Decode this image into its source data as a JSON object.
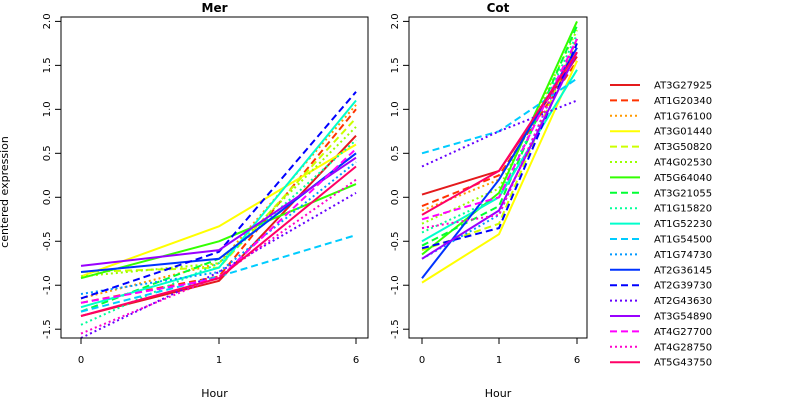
{
  "chart_data": {
    "type": "line",
    "ylabel": "centered expression",
    "xlabel": "Hour",
    "x": [
      "0",
      "1",
      "6"
    ],
    "ylim": [
      -1.6,
      2.05
    ],
    "yticks": [
      "-1.5",
      "-1.0",
      "-0.5",
      "0.0",
      "0.5",
      "1.0",
      "1.5",
      "2.0"
    ],
    "ytick_values": [
      -1.5,
      -1.0,
      -0.5,
      0.0,
      0.5,
      1.0,
      1.5,
      2.0
    ],
    "grid": false,
    "legend_placement": "right",
    "series_styles": [
      {
        "name": "AT3G27925",
        "color": "#e41a1c",
        "dash": "solid"
      },
      {
        "name": "AT1G20340",
        "color": "#ff3300",
        "dash": "dashed"
      },
      {
        "name": "AT1G76100",
        "color": "#ff9900",
        "dash": "dotted"
      },
      {
        "name": "AT3G01440",
        "color": "#ffff00",
        "dash": "solid"
      },
      {
        "name": "AT3G50820",
        "color": "#ccff00",
        "dash": "dashed"
      },
      {
        "name": "AT4G02530",
        "color": "#99ff00",
        "dash": "dotted"
      },
      {
        "name": "AT5G64040",
        "color": "#33ff00",
        "dash": "solid"
      },
      {
        "name": "AT3G21055",
        "color": "#00ff33",
        "dash": "dashed"
      },
      {
        "name": "AT1G15820",
        "color": "#00ff99",
        "dash": "dotted"
      },
      {
        "name": "AT1G52230",
        "color": "#00ffcc",
        "dash": "solid"
      },
      {
        "name": "AT1G54500",
        "color": "#00ccff",
        "dash": "dashed"
      },
      {
        "name": "AT1G74730",
        "color": "#0099ff",
        "dash": "dotted"
      },
      {
        "name": "AT2G36145",
        "color": "#0033ff",
        "dash": "solid"
      },
      {
        "name": "AT2G39730",
        "color": "#0000ff",
        "dash": "dashed"
      },
      {
        "name": "AT2G43630",
        "color": "#6600ff",
        "dash": "dotted"
      },
      {
        "name": "AT3G54890",
        "color": "#9900ff",
        "dash": "solid"
      },
      {
        "name": "AT4G27700",
        "color": "#ff00ff",
        "dash": "dashed"
      },
      {
        "name": "AT4G28750",
        "color": "#ff00cc",
        "dash": "dotted"
      },
      {
        "name": "AT5G43750",
        "color": "#ff0066",
        "dash": "solid"
      }
    ],
    "panels": [
      {
        "title": "Mer",
        "series": [
          {
            "name": "AT3G27925",
            "values": [
              -1.35,
              -0.95,
              0.7
            ]
          },
          {
            "name": "AT1G20340",
            "values": [
              -1.2,
              -0.9,
              1.0
            ]
          },
          {
            "name": "AT1G76100",
            "values": [
              -1.15,
              -0.75,
              1.05
            ]
          },
          {
            "name": "AT3G01440",
            "values": [
              -0.9,
              -0.33,
              0.6
            ]
          },
          {
            "name": "AT3G50820",
            "values": [
              -0.85,
              -0.8,
              0.9
            ]
          },
          {
            "name": "AT4G02530",
            "values": [
              -0.9,
              -0.75,
              0.8
            ]
          },
          {
            "name": "AT5G64040",
            "values": [
              -0.92,
              -0.5,
              0.15
            ]
          },
          {
            "name": "AT3G21055",
            "values": [
              -1.3,
              -0.7,
              0.5
            ]
          },
          {
            "name": "AT1G15820",
            "values": [
              -1.45,
              -0.75,
              0.65
            ]
          },
          {
            "name": "AT1G52230",
            "values": [
              -1.25,
              -0.8,
              1.1
            ]
          },
          {
            "name": "AT1G54500",
            "values": [
              -1.3,
              -0.9,
              -0.43
            ]
          },
          {
            "name": "AT1G74730",
            "values": [
              -1.1,
              -0.85,
              0.4
            ]
          },
          {
            "name": "AT2G36145",
            "values": [
              -0.85,
              -0.7,
              0.5
            ]
          },
          {
            "name": "AT2G39730",
            "values": [
              -1.15,
              -0.62,
              1.2
            ]
          },
          {
            "name": "AT2G43630",
            "values": [
              -1.6,
              -0.85,
              0.05
            ]
          },
          {
            "name": "AT3G54890",
            "values": [
              -0.78,
              -0.6,
              0.45
            ]
          },
          {
            "name": "AT4G27700",
            "values": [
              -1.2,
              -0.92,
              0.55
            ]
          },
          {
            "name": "AT4G28750",
            "values": [
              -1.55,
              -0.9,
              0.2
            ]
          },
          {
            "name": "AT5G43750",
            "values": [
              -1.35,
              -0.92,
              0.35
            ]
          }
        ]
      },
      {
        "title": "Cot",
        "series": [
          {
            "name": "AT3G27925",
            "values": [
              0.03,
              0.3,
              1.6
            ]
          },
          {
            "name": "AT1G20340",
            "values": [
              -0.1,
              0.25,
              1.55
            ]
          },
          {
            "name": "AT1G76100",
            "values": [
              -0.15,
              0.2,
              1.7
            ]
          },
          {
            "name": "AT3G01440",
            "values": [
              -0.97,
              -0.42,
              1.55
            ]
          },
          {
            "name": "AT3G50820",
            "values": [
              -0.6,
              -0.3,
              1.8
            ]
          },
          {
            "name": "AT4G02530",
            "values": [
              -0.3,
              0.1,
              1.9
            ]
          },
          {
            "name": "AT5G64040",
            "values": [
              -0.65,
              0.05,
              2.0
            ]
          },
          {
            "name": "AT3G21055",
            "values": [
              -0.55,
              -0.1,
              1.95
            ]
          },
          {
            "name": "AT1G15820",
            "values": [
              -0.4,
              0.0,
              1.85
            ]
          },
          {
            "name": "AT1G52230",
            "values": [
              -0.5,
              0.0,
              1.45
            ]
          },
          {
            "name": "AT1G54500",
            "values": [
              0.5,
              0.75,
              1.35
            ]
          },
          {
            "name": "AT1G74730",
            "values": [
              -0.7,
              -0.2,
              1.8
            ]
          },
          {
            "name": "AT2G36145",
            "values": [
              -0.92,
              0.2,
              1.7
            ]
          },
          {
            "name": "AT2G39730",
            "values": [
              -0.58,
              -0.35,
              1.75
            ]
          },
          {
            "name": "AT2G43630",
            "values": [
              0.35,
              0.75,
              1.1
            ]
          },
          {
            "name": "AT3G54890",
            "values": [
              -0.7,
              -0.15,
              1.65
            ]
          },
          {
            "name": "AT4G27700",
            "values": [
              -0.25,
              0.0,
              1.8
            ]
          },
          {
            "name": "AT4G28750",
            "values": [
              -0.35,
              -0.2,
              1.8
            ]
          },
          {
            "name": "AT5G43750",
            "values": [
              -0.2,
              0.3,
              1.65
            ]
          }
        ]
      }
    ]
  }
}
